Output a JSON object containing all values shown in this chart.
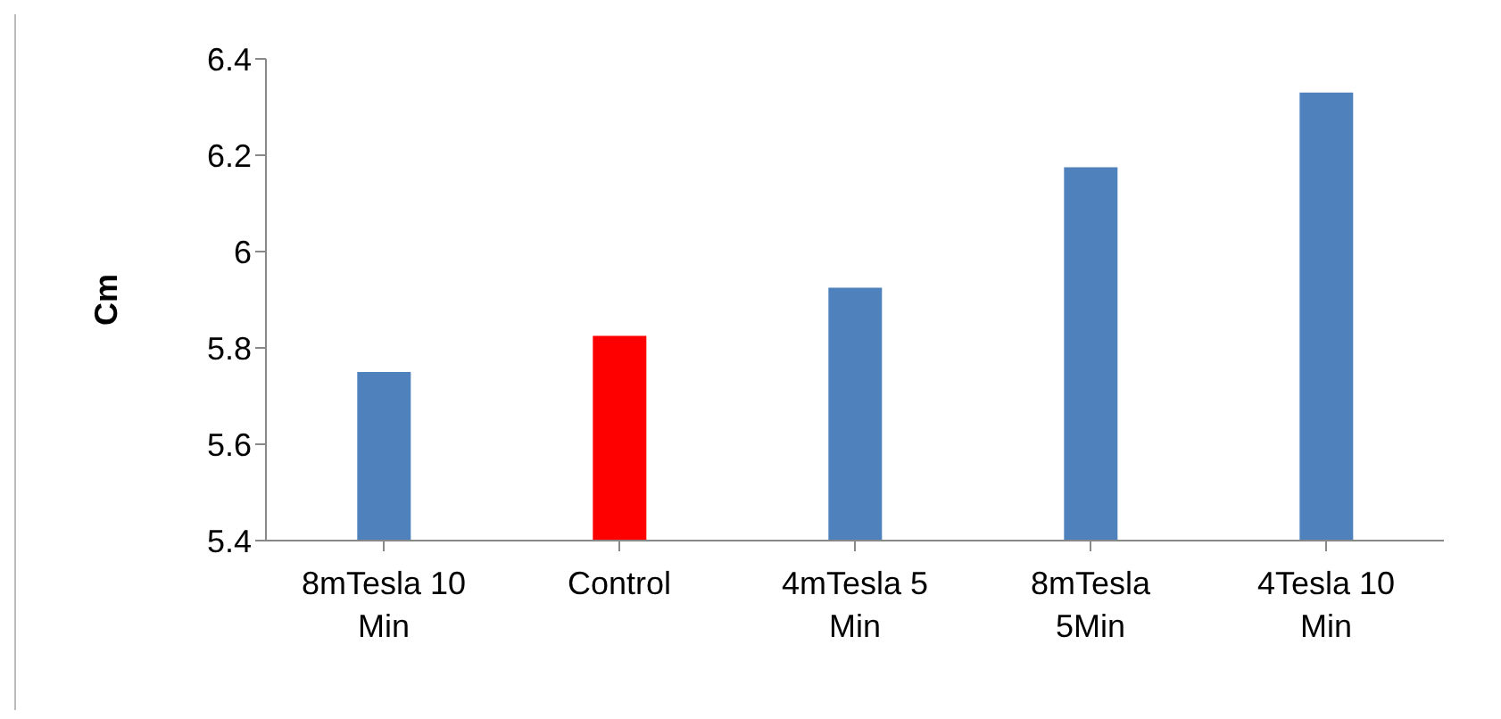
{
  "chart_data": {
    "type": "bar",
    "ylabel": "Cm",
    "categories": [
      "8mTesla 10 Min",
      "Control",
      "4mTesla 5 Min",
      "8mTesla 5Min",
      "4Tesla 10 Min"
    ],
    "values": [
      5.75,
      5.825,
      5.925,
      6.175,
      6.33
    ],
    "colors": [
      "#4f81bd",
      "#ff0000",
      "#4f81bd",
      "#4f81bd",
      "#4f81bd"
    ],
    "ylim": [
      5.4,
      6.4
    ],
    "yticks": [
      5.4,
      5.6,
      5.8,
      6,
      6.2,
      6.4
    ],
    "grid": false,
    "legend": false
  }
}
